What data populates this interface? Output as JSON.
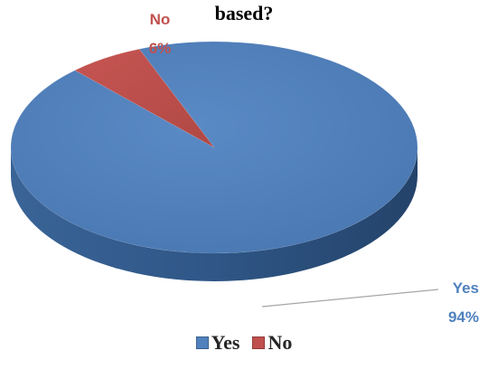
{
  "chart_data": {
    "type": "pie",
    "title": "based?",
    "categories": [
      "Yes",
      "No"
    ],
    "values": [
      94,
      6
    ],
    "unit": "%",
    "colors": [
      "#4F81BD",
      "#C0504D"
    ],
    "data_labels": [
      {
        "category": "Yes",
        "value": "94%"
      },
      {
        "category": "No",
        "value": "6%"
      }
    ],
    "legend_position": "bottom",
    "style": "3d"
  }
}
